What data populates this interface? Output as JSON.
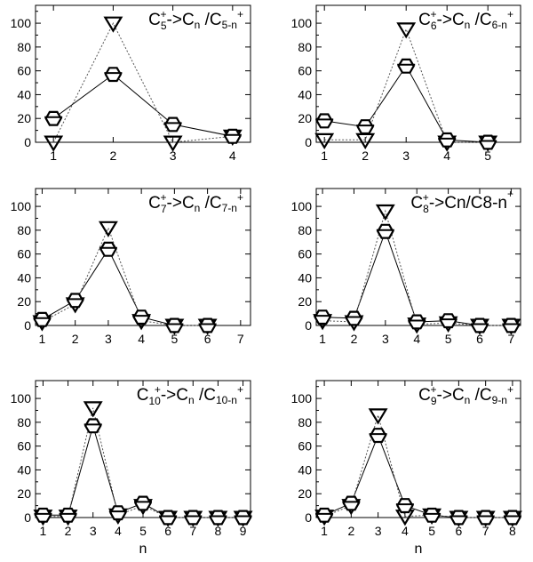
{
  "chart_data": [
    {
      "type": "line",
      "title": {
        "a": "C",
        "a_sub": "5",
        "a_sup": "+",
        "b": "->C",
        "c": "n",
        "d": " /C",
        "e": "5-n",
        "f": "+"
      },
      "xlabel": "",
      "ylabel": "",
      "x": [
        1,
        2,
        3,
        4
      ],
      "xticks": [
        "1",
        "2",
        "3",
        "4"
      ],
      "xlim": [
        0.7,
        4.3
      ],
      "ylim": [
        0,
        115
      ],
      "yticks": [
        "0",
        "20",
        "40",
        "60",
        "80",
        "100"
      ],
      "series": [
        {
          "marker": "hexagon",
          "line": "solid",
          "values": [
            20,
            57,
            15,
            5
          ]
        },
        {
          "marker": "triangle-down",
          "line": "dotted",
          "values": [
            0,
            100,
            0,
            5
          ]
        }
      ]
    },
    {
      "type": "line",
      "title": {
        "a": "C",
        "a_sub": "6",
        "a_sup": "+",
        "b": "->C",
        "c": "n",
        "d": " /C",
        "e": "6-n",
        "f": "+"
      },
      "xlabel": "",
      "ylabel": "",
      "x": [
        1,
        2,
        3,
        4,
        5
      ],
      "xticks": [
        "1",
        "2",
        "3",
        "4",
        "5"
      ],
      "xlim": [
        0.8,
        5.8
      ],
      "ylim": [
        0,
        115
      ],
      "yticks": [
        "0",
        "20",
        "40",
        "60",
        "80",
        "100"
      ],
      "series": [
        {
          "marker": "hexagon",
          "line": "solid",
          "values": [
            18,
            13,
            64,
            2,
            0
          ]
        },
        {
          "marker": "triangle-down",
          "line": "dotted",
          "values": [
            2,
            2,
            95,
            0,
            0
          ]
        }
      ]
    },
    {
      "type": "line",
      "title": {
        "a": "C",
        "a_sub": "7",
        "a_sup": "+",
        "b": "->C",
        "c": "n",
        "d": " /C",
        "e": "7-n",
        "f": "+"
      },
      "xlabel": "",
      "ylabel": "",
      "x": [
        1,
        2,
        3,
        4,
        5,
        6
      ],
      "xticks": [
        "1",
        "2",
        "3",
        "4",
        "5",
        "6",
        "7"
      ],
      "xlim": [
        0.8,
        7.3
      ],
      "ylim": [
        0,
        115
      ],
      "yticks": [
        "0",
        "20",
        "40",
        "60",
        "80",
        "100"
      ],
      "series": [
        {
          "marker": "hexagon",
          "line": "solid",
          "values": [
            5,
            21,
            64,
            7,
            0,
            0
          ]
        },
        {
          "marker": "triangle-down",
          "line": "dotted",
          "values": [
            3,
            18,
            82,
            4,
            0,
            0
          ]
        }
      ]
    },
    {
      "type": "line",
      "title": {
        "a": "C",
        "a_sub": "8",
        "a_sup": "+",
        "b": "->Cn/C8-n",
        "c": "",
        "d": "",
        "e": "",
        "f": "+"
      },
      "xlabel": "",
      "ylabel": "",
      "x": [
        1,
        2,
        3,
        4,
        5,
        6,
        7
      ],
      "xticks": [
        "1",
        "2",
        "3",
        "4",
        "5",
        "6",
        "7"
      ],
      "xlim": [
        0.8,
        7.3
      ],
      "ylim": [
        0,
        115
      ],
      "yticks": [
        "0",
        "20",
        "40",
        "60",
        "80",
        "100"
      ],
      "series": [
        {
          "marker": "hexagon",
          "line": "solid",
          "values": [
            7,
            6,
            79,
            3,
            4,
            0,
            0
          ]
        },
        {
          "marker": "triangle-down",
          "line": "dotted",
          "values": [
            4,
            3,
            96,
            1,
            2,
            0,
            0
          ]
        }
      ]
    },
    {
      "type": "line",
      "title": {
        "a": "C",
        "a_sub": "10",
        "a_sup": "+",
        "b": "->C",
        "c": "n",
        "d": " /C",
        "e": "10-n",
        "f": "+"
      },
      "xlabel": "n",
      "ylabel": "",
      "x": [
        1,
        2,
        3,
        4,
        5,
        6,
        7,
        8,
        9
      ],
      "xticks": [
        "1",
        "2",
        "3",
        "4",
        "5",
        "6",
        "7",
        "8",
        "9"
      ],
      "xlim": [
        0.7,
        9.3
      ],
      "ylim": [
        0,
        115
      ],
      "yticks": [
        "0",
        "20",
        "40",
        "60",
        "80",
        "100"
      ],
      "series": [
        {
          "marker": "hexagon",
          "line": "solid",
          "values": [
            2,
            2,
            77,
            4,
            12,
            0,
            0,
            0,
            0
          ]
        },
        {
          "marker": "triangle-down",
          "line": "dotted",
          "values": [
            1,
            1,
            92,
            2,
            10,
            0,
            0,
            0,
            0
          ]
        }
      ]
    },
    {
      "type": "line",
      "title": {
        "a": "C",
        "a_sub": "9",
        "a_sup": "+",
        "b": "->C",
        "c": "n",
        "d": " /C",
        "e": "9-n",
        "f": "+"
      },
      "xlabel": "n",
      "ylabel": "",
      "x": [
        1,
        2,
        3,
        4,
        5,
        6,
        7,
        8
      ],
      "xticks": [
        "1",
        "2",
        "3",
        "4",
        "5",
        "6",
        "7",
        "8"
      ],
      "xlim": [
        0.7,
        8.3
      ],
      "ylim": [
        0,
        115
      ],
      "yticks": [
        "0",
        "20",
        "40",
        "60",
        "80",
        "100"
      ],
      "series": [
        {
          "marker": "hexagon",
          "line": "solid",
          "values": [
            2,
            12,
            69,
            10,
            2,
            0,
            0,
            0
          ]
        },
        {
          "marker": "triangle-down",
          "line": "dotted",
          "values": [
            1,
            10,
            86,
            1,
            2,
            0,
            0,
            0
          ]
        }
      ]
    }
  ]
}
